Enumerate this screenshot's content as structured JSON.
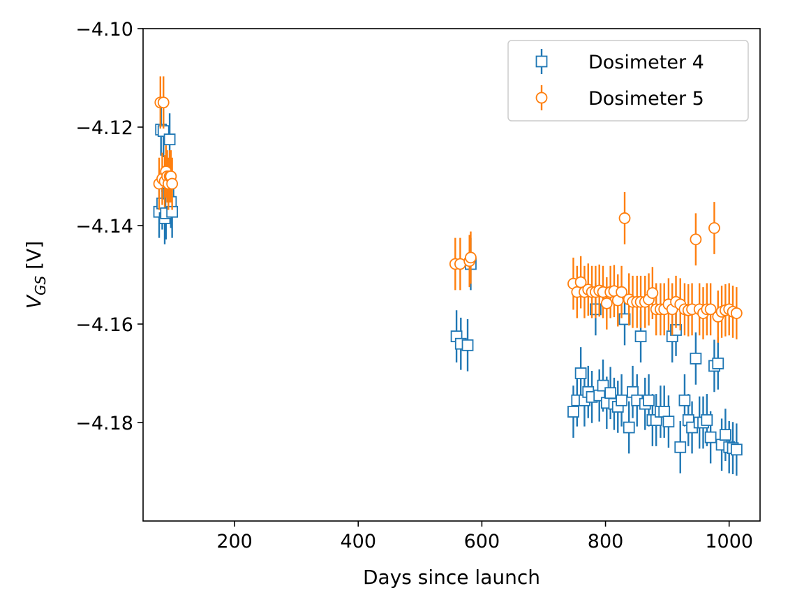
{
  "chart_data": {
    "type": "scatter",
    "title": "",
    "xlabel": "Days since launch",
    "ylabel": {
      "main": "V",
      "sub": "GS",
      "unit": " [V]"
    },
    "xlim": [
      52,
      1050
    ],
    "ylim": [
      -4.2,
      -4.1
    ],
    "xticks": [
      200,
      400,
      600,
      800,
      1000
    ],
    "xtick_labels": [
      "200",
      "400",
      "600",
      "800",
      "1000"
    ],
    "yticks": [
      -4.1,
      -4.12,
      -4.14,
      -4.16,
      -4.18
    ],
    "ytick_labels": [
      "−4.10",
      "−4.12",
      "−4.14",
      "−4.16",
      "−4.18"
    ],
    "grid": false,
    "legend_position": "top-right",
    "series": [
      {
        "name": "Dosimeter 4",
        "marker": "square",
        "color": "#1f77b4",
        "yerr": 0.0053,
        "points": [
          [
            78,
            -4.1372
          ],
          [
            81,
            -4.1205
          ],
          [
            83,
            -4.1355
          ],
          [
            85,
            -4.1208
          ],
          [
            87,
            -4.1385
          ],
          [
            89,
            -4.1375
          ],
          [
            91,
            -4.132
          ],
          [
            93,
            -4.1335
          ],
          [
            95,
            -4.1225
          ],
          [
            97,
            -4.1352
          ],
          [
            99,
            -4.1372
          ],
          [
            559,
            -4.1625
          ],
          [
            566,
            -4.164
          ],
          [
            577,
            -4.1643
          ],
          [
            582,
            -4.1478
          ],
          [
            748,
            -4.1778
          ],
          [
            754,
            -4.1755
          ],
          [
            760,
            -4.17
          ],
          [
            766,
            -4.1755
          ],
          [
            772,
            -4.1738
          ],
          [
            778,
            -4.1748
          ],
          [
            784,
            -4.157
          ],
          [
            790,
            -4.1745
          ],
          [
            796,
            -4.1725
          ],
          [
            802,
            -4.176
          ],
          [
            808,
            -4.174
          ],
          [
            814,
            -4.1762
          ],
          [
            820,
            -4.1768
          ],
          [
            826,
            -4.1755
          ],
          [
            831,
            -4.159
          ],
          [
            838,
            -4.181
          ],
          [
            844,
            -4.1738
          ],
          [
            851,
            -4.1755
          ],
          [
            857,
            -4.1625
          ],
          [
            864,
            -4.1762
          ],
          [
            870,
            -4.1755
          ],
          [
            876,
            -4.1795
          ],
          [
            882,
            -4.1795
          ],
          [
            889,
            -4.1778
          ],
          [
            895,
            -4.1778
          ],
          [
            902,
            -4.1798
          ],
          [
            908,
            -4.1625
          ],
          [
            914,
            -4.1612
          ],
          [
            921,
            -4.185
          ],
          [
            928,
            -4.1755
          ],
          [
            934,
            -4.1795
          ],
          [
            940,
            -4.181
          ],
          [
            946,
            -4.167
          ],
          [
            952,
            -4.18
          ],
          [
            958,
            -4.18
          ],
          [
            964,
            -4.1795
          ],
          [
            970,
            -4.183
          ],
          [
            976,
            -4.1685
          ],
          [
            982,
            -4.168
          ],
          [
            988,
            -4.1845
          ],
          [
            994,
            -4.1825
          ],
          [
            1000,
            -4.185
          ],
          [
            1006,
            -4.1852
          ],
          [
            1012,
            -4.1855
          ]
        ]
      },
      {
        "name": "Dosimeter 5",
        "marker": "circle",
        "color": "#ff7f0e",
        "yerr": 0.0053,
        "points": [
          [
            78,
            -4.1315
          ],
          [
            80,
            -4.115
          ],
          [
            83,
            -4.1305
          ],
          [
            85,
            -4.115
          ],
          [
            87,
            -4.131
          ],
          [
            89,
            -4.129
          ],
          [
            91,
            -4.13
          ],
          [
            93,
            -4.1315
          ],
          [
            95,
            -4.13
          ],
          [
            97,
            -4.13
          ],
          [
            99,
            -4.1315
          ],
          [
            557,
            -4.1478
          ],
          [
            565,
            -4.1478
          ],
          [
            580,
            -4.1472
          ],
          [
            582,
            -4.1465
          ],
          [
            748,
            -4.1518
          ],
          [
            754,
            -4.1535
          ],
          [
            760,
            -4.1515
          ],
          [
            766,
            -4.1535
          ],
          [
            772,
            -4.153
          ],
          [
            778,
            -4.1535
          ],
          [
            784,
            -4.1535
          ],
          [
            790,
            -4.1532
          ],
          [
            796,
            -4.1535
          ],
          [
            802,
            -4.1558
          ],
          [
            808,
            -4.1535
          ],
          [
            814,
            -4.1533
          ],
          [
            820,
            -4.1552
          ],
          [
            826,
            -4.1535
          ],
          [
            831,
            -4.1385
          ],
          [
            838,
            -4.155
          ],
          [
            844,
            -4.1555
          ],
          [
            851,
            -4.1555
          ],
          [
            857,
            -4.1555
          ],
          [
            864,
            -4.1555
          ],
          [
            870,
            -4.155
          ],
          [
            876,
            -4.1537
          ],
          [
            882,
            -4.157
          ],
          [
            889,
            -4.157
          ],
          [
            895,
            -4.157
          ],
          [
            902,
            -4.156
          ],
          [
            908,
            -4.157
          ],
          [
            914,
            -4.1555
          ],
          [
            921,
            -4.156
          ],
          [
            928,
            -4.157
          ],
          [
            934,
            -4.1572
          ],
          [
            940,
            -4.157
          ],
          [
            946,
            -4.1428
          ],
          [
            952,
            -4.157
          ],
          [
            958,
            -4.1578
          ],
          [
            964,
            -4.157
          ],
          [
            970,
            -4.157
          ],
          [
            976,
            -4.1405
          ],
          [
            982,
            -4.1585
          ],
          [
            988,
            -4.1575
          ],
          [
            994,
            -4.1572
          ],
          [
            1000,
            -4.157
          ],
          [
            1006,
            -4.1575
          ],
          [
            1012,
            -4.1578
          ]
        ]
      }
    ]
  }
}
